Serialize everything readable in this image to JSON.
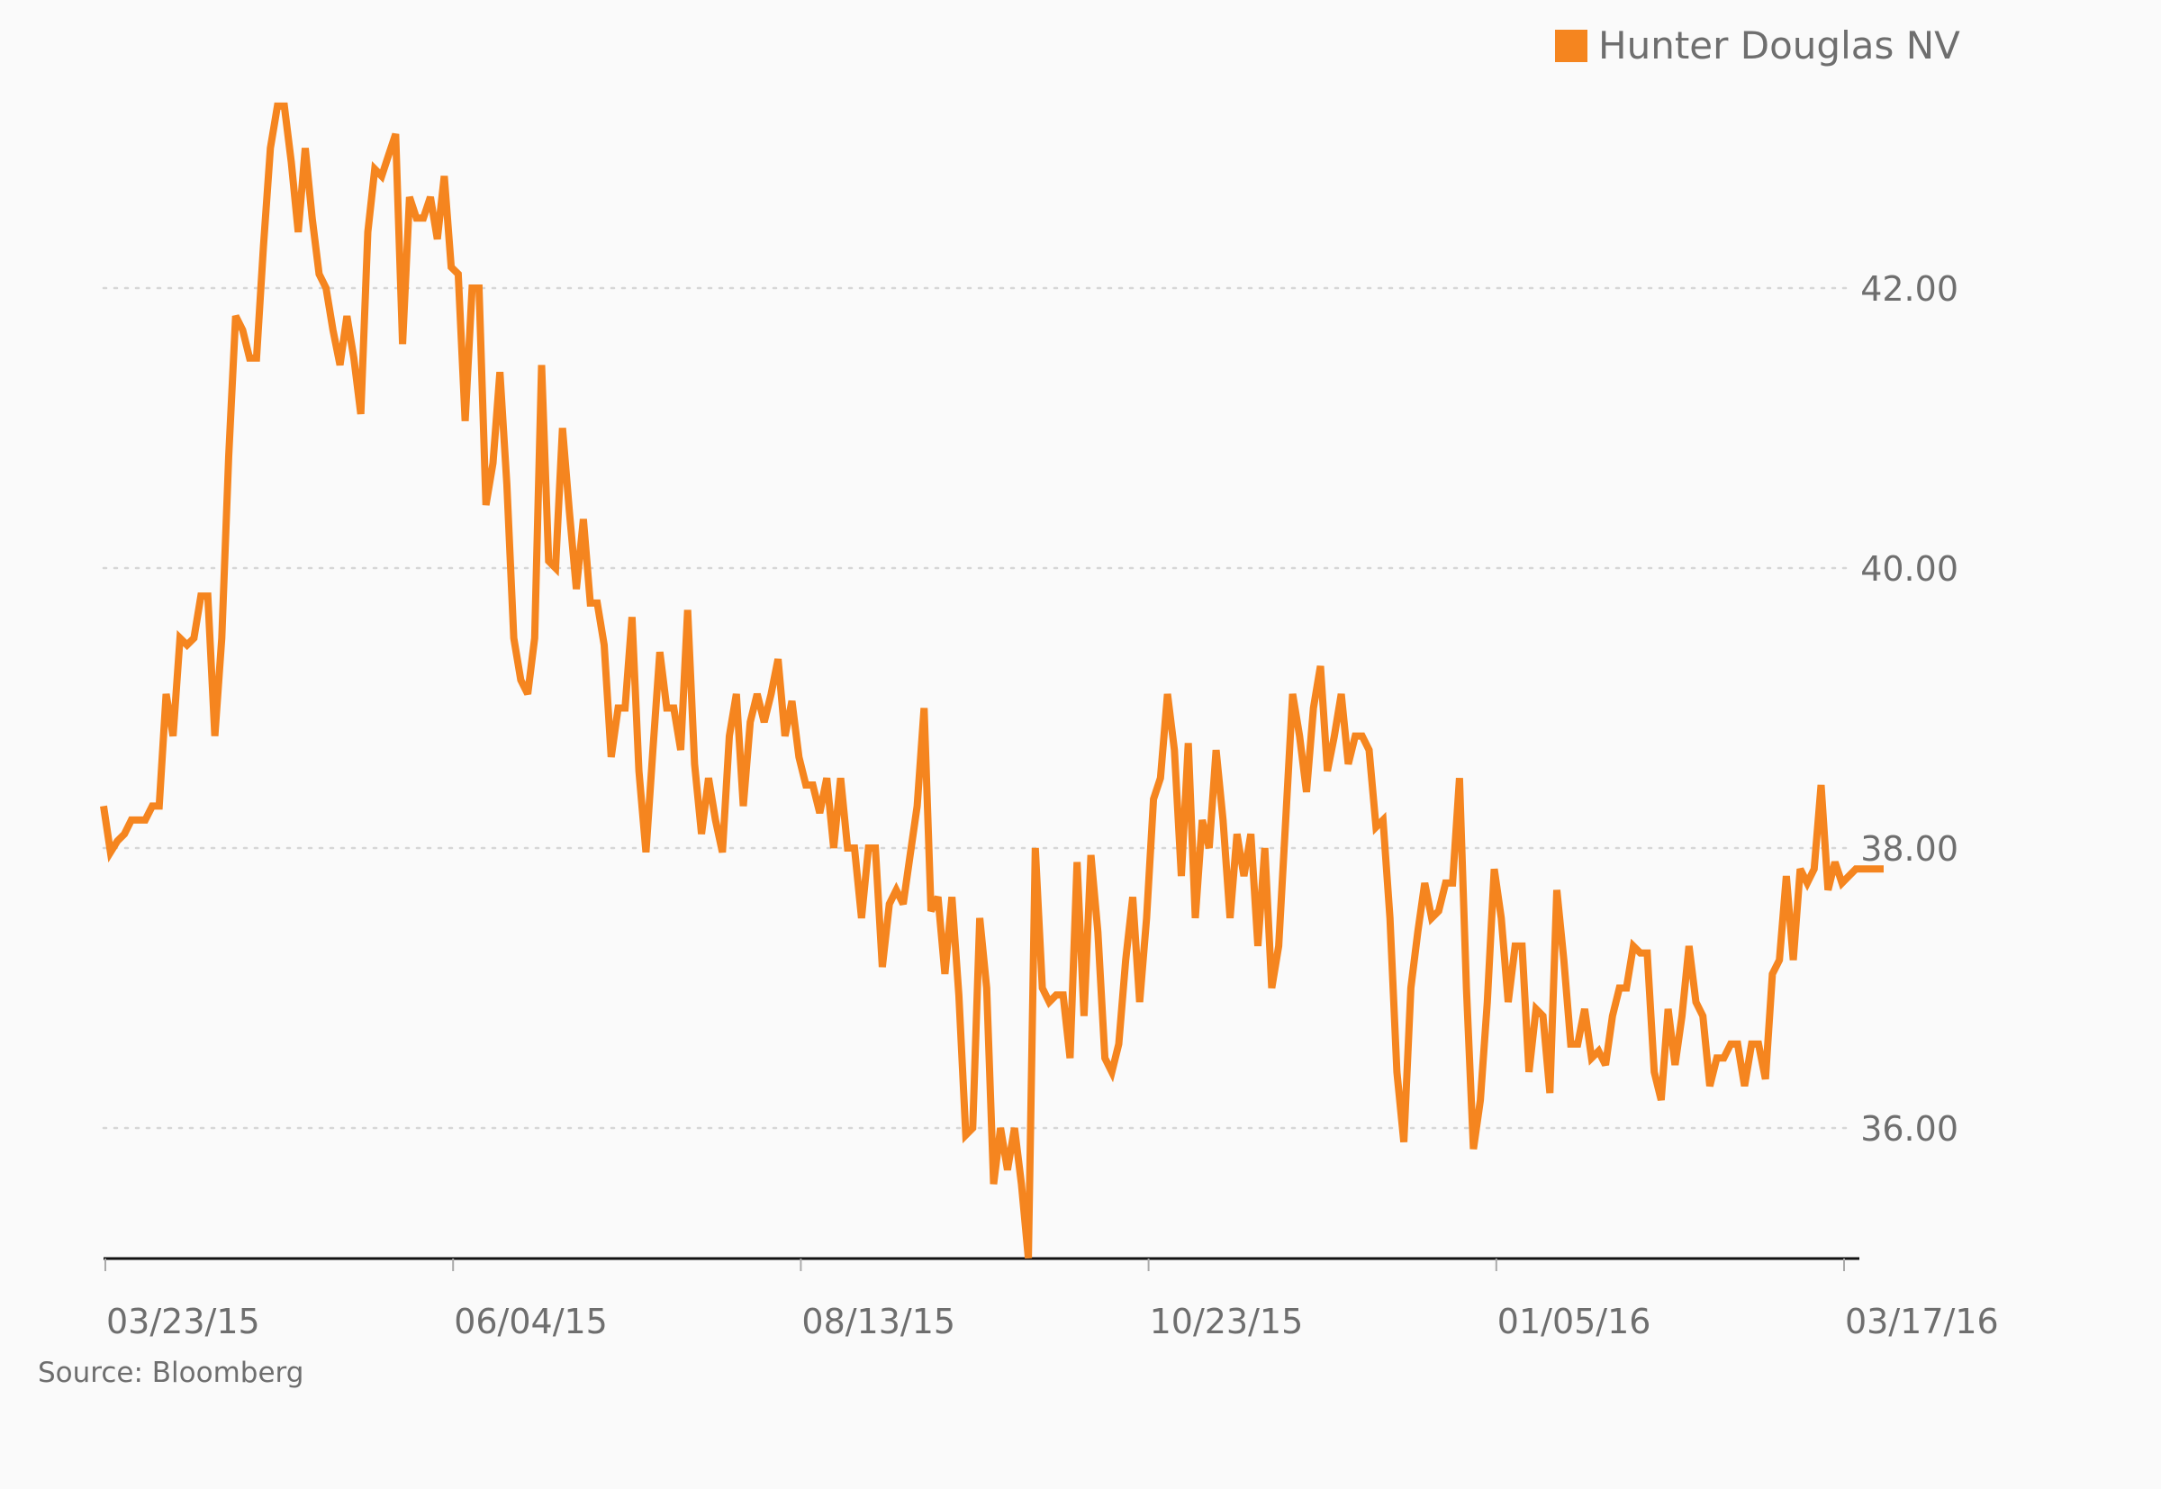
{
  "chart_data": {
    "type": "line",
    "title": "",
    "xlabel": "",
    "ylabel": "",
    "x_ticks": [
      "03/23/15",
      "06/04/15",
      "08/13/15",
      "10/23/15",
      "01/05/16",
      "03/17/16"
    ],
    "x_range": [
      "03/23/15",
      "03/17/16"
    ],
    "y_ticks": [
      36.0,
      38.0,
      40.0,
      42.0
    ],
    "y_tick_labels": [
      "36.00",
      "38.00",
      "40.00",
      "42.00"
    ],
    "ylim": [
      35.07,
      43.6
    ],
    "grid": "horizontal dotted",
    "legend_position": "top-right",
    "source": "Source: Bloomberg",
    "series": [
      {
        "name": "Hunter Douglas NV",
        "color": "#f5851f",
        "values": [
          38.3,
          37.97,
          38.05,
          38.1,
          38.2,
          38.2,
          38.2,
          38.3,
          38.3,
          39.1,
          38.8,
          39.5,
          39.45,
          39.5,
          39.8,
          39.8,
          38.8,
          39.5,
          40.8,
          41.8,
          41.7,
          41.5,
          41.5,
          42.3,
          43.0,
          43.3,
          43.3,
          42.9,
          42.4,
          43.0,
          42.5,
          42.1,
          42.0,
          41.7,
          41.45,
          41.8,
          41.5,
          41.1,
          42.4,
          42.85,
          42.8,
          42.95,
          43.1,
          41.6,
          42.65,
          42.5,
          42.5,
          42.65,
          42.35,
          42.8,
          42.15,
          42.1,
          41.05,
          42.0,
          42.0,
          40.45,
          40.75,
          41.4,
          40.6,
          39.5,
          39.2,
          39.1,
          39.5,
          41.45,
          40.05,
          40.0,
          41.0,
          40.4,
          39.85,
          40.35,
          39.75,
          39.75,
          39.45,
          38.65,
          39.0,
          39.0,
          39.65,
          38.55,
          37.97,
          38.7,
          39.4,
          39.0,
          39.0,
          38.7,
          39.7,
          38.6,
          38.1,
          38.5,
          38.2,
          37.97,
          38.8,
          39.1,
          38.3,
          38.9,
          39.1,
          38.9,
          39.1,
          39.35,
          38.8,
          39.05,
          38.65,
          38.45,
          38.45,
          38.25,
          38.5,
          38.0,
          38.5,
          38.0,
          38.0,
          37.5,
          38.0,
          38.0,
          37.15,
          37.6,
          37.7,
          37.6,
          37.95,
          38.3,
          39.0,
          37.55,
          37.65,
          37.1,
          37.65,
          36.95,
          35.95,
          36.0,
          37.5,
          37.0,
          35.6,
          36.0,
          35.7,
          36.0,
          35.6,
          35.07,
          38.0,
          37.0,
          36.9,
          36.95,
          36.95,
          36.5,
          37.9,
          36.8,
          37.95,
          37.4,
          36.5,
          36.4,
          36.6,
          37.2,
          37.65,
          36.9,
          37.5,
          38.35,
          38.5,
          39.1,
          38.7,
          37.8,
          38.75,
          37.5,
          38.2,
          38.0,
          38.7,
          38.2,
          37.5,
          38.1,
          37.8,
          38.1,
          37.3,
          38.0,
          37.0,
          37.3,
          38.2,
          39.1,
          38.8,
          38.4,
          39.0,
          39.3,
          38.55,
          38.8,
          39.1,
          38.6,
          38.8,
          38.8,
          38.7,
          38.15,
          38.2,
          37.5,
          36.4,
          35.9,
          37.0,
          37.4,
          37.75,
          37.5,
          37.55,
          37.75,
          37.75,
          38.5,
          37.0,
          35.85,
          36.2,
          36.9,
          37.85,
          37.5,
          36.9,
          37.3,
          37.3,
          36.4,
          36.85,
          36.8,
          36.25,
          37.7,
          37.2,
          36.6,
          36.6,
          36.85,
          36.5,
          36.55,
          36.45,
          36.8,
          37.0,
          37.0,
          37.3,
          37.25,
          37.25,
          36.4,
          36.2,
          36.85,
          36.45,
          36.8,
          37.3,
          36.9,
          36.8,
          36.3,
          36.5,
          36.5,
          36.6,
          36.6,
          36.3,
          36.6,
          36.6,
          36.35,
          37.1,
          37.2,
          37.8,
          37.2,
          37.85,
          37.75,
          37.85,
          38.45,
          37.7,
          37.9,
          37.75,
          37.8,
          37.85,
          37.85,
          37.85,
          37.85,
          37.85
        ]
      }
    ]
  }
}
